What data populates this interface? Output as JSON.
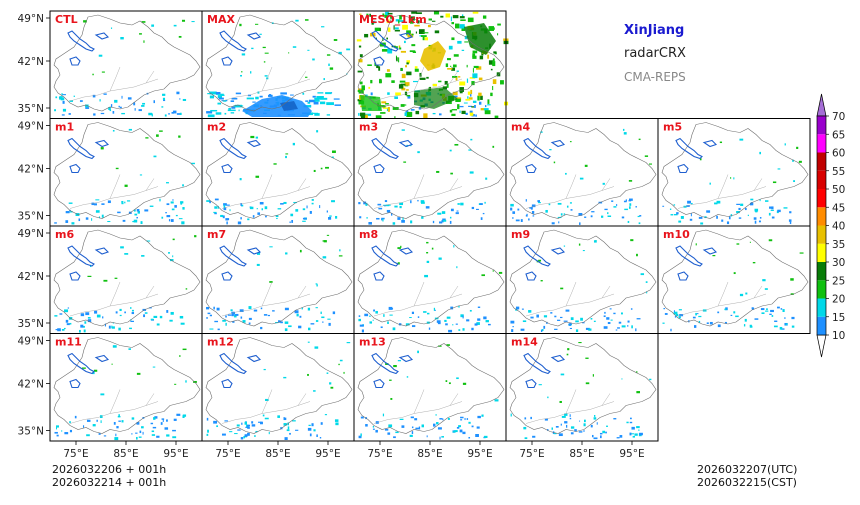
{
  "colors": {
    "panel_label": "#e8141c",
    "title": "#1a1ad0",
    "model": "#222222",
    "source": "#888888",
    "border": "#6e6e6e",
    "lake": "#1f5fcf"
  },
  "info": {
    "title": "XinJiang",
    "product": "radarCRX",
    "model": "CMA-REPS"
  },
  "footer": {
    "init_utc": "2026032206  +  001h",
    "init_cst": "2026032214  +  001h",
    "valid_utc": "2026032207(UTC)",
    "valid_cst": "2026032215(CST)"
  },
  "axes": {
    "lat_labels": [
      "49°N",
      "42°N",
      "35°N"
    ],
    "lon_labels": [
      "75°E",
      "85°E",
      "95°E"
    ]
  },
  "panels": [
    {
      "label": "CTL",
      "row": 0,
      "col": 0,
      "style": "sparse"
    },
    {
      "label": "MAX",
      "row": 0,
      "col": 1,
      "style": "max"
    },
    {
      "label": "MESO_1km",
      "row": 0,
      "col": 2,
      "style": "meso"
    },
    {
      "label": "m1",
      "row": 1,
      "col": 0,
      "style": "sparse"
    },
    {
      "label": "m2",
      "row": 1,
      "col": 1,
      "style": "sparse"
    },
    {
      "label": "m3",
      "row": 1,
      "col": 2,
      "style": "sparse"
    },
    {
      "label": "m4",
      "row": 1,
      "col": 3,
      "style": "sparse"
    },
    {
      "label": "m5",
      "row": 1,
      "col": 4,
      "style": "sparse"
    },
    {
      "label": "m6",
      "row": 2,
      "col": 0,
      "style": "sparse"
    },
    {
      "label": "m7",
      "row": 2,
      "col": 1,
      "style": "sparse"
    },
    {
      "label": "m8",
      "row": 2,
      "col": 2,
      "style": "sparse"
    },
    {
      "label": "m9",
      "row": 2,
      "col": 3,
      "style": "sparse"
    },
    {
      "label": "m10",
      "row": 2,
      "col": 4,
      "style": "sparse"
    },
    {
      "label": "m11",
      "row": 3,
      "col": 0,
      "style": "sparse"
    },
    {
      "label": "m12",
      "row": 3,
      "col": 1,
      "style": "sparse"
    },
    {
      "label": "m13",
      "row": 3,
      "col": 2,
      "style": "sparse"
    },
    {
      "label": "m14",
      "row": 3,
      "col": 3,
      "style": "sparse"
    }
  ],
  "colorbar": {
    "levels": [
      10,
      15,
      20,
      25,
      30,
      35,
      40,
      45,
      50,
      55,
      60,
      65,
      70
    ],
    "colors": [
      "#1e90ff",
      "#00d8e8",
      "#10c010",
      "#087c08",
      "#ffff00",
      "#e8c000",
      "#ff8c00",
      "#ff0000",
      "#d80000",
      "#c00000",
      "#ff00ff",
      "#9900cc"
    ],
    "over_color": "#a56ed6",
    "under_color": "#ffffff"
  }
}
